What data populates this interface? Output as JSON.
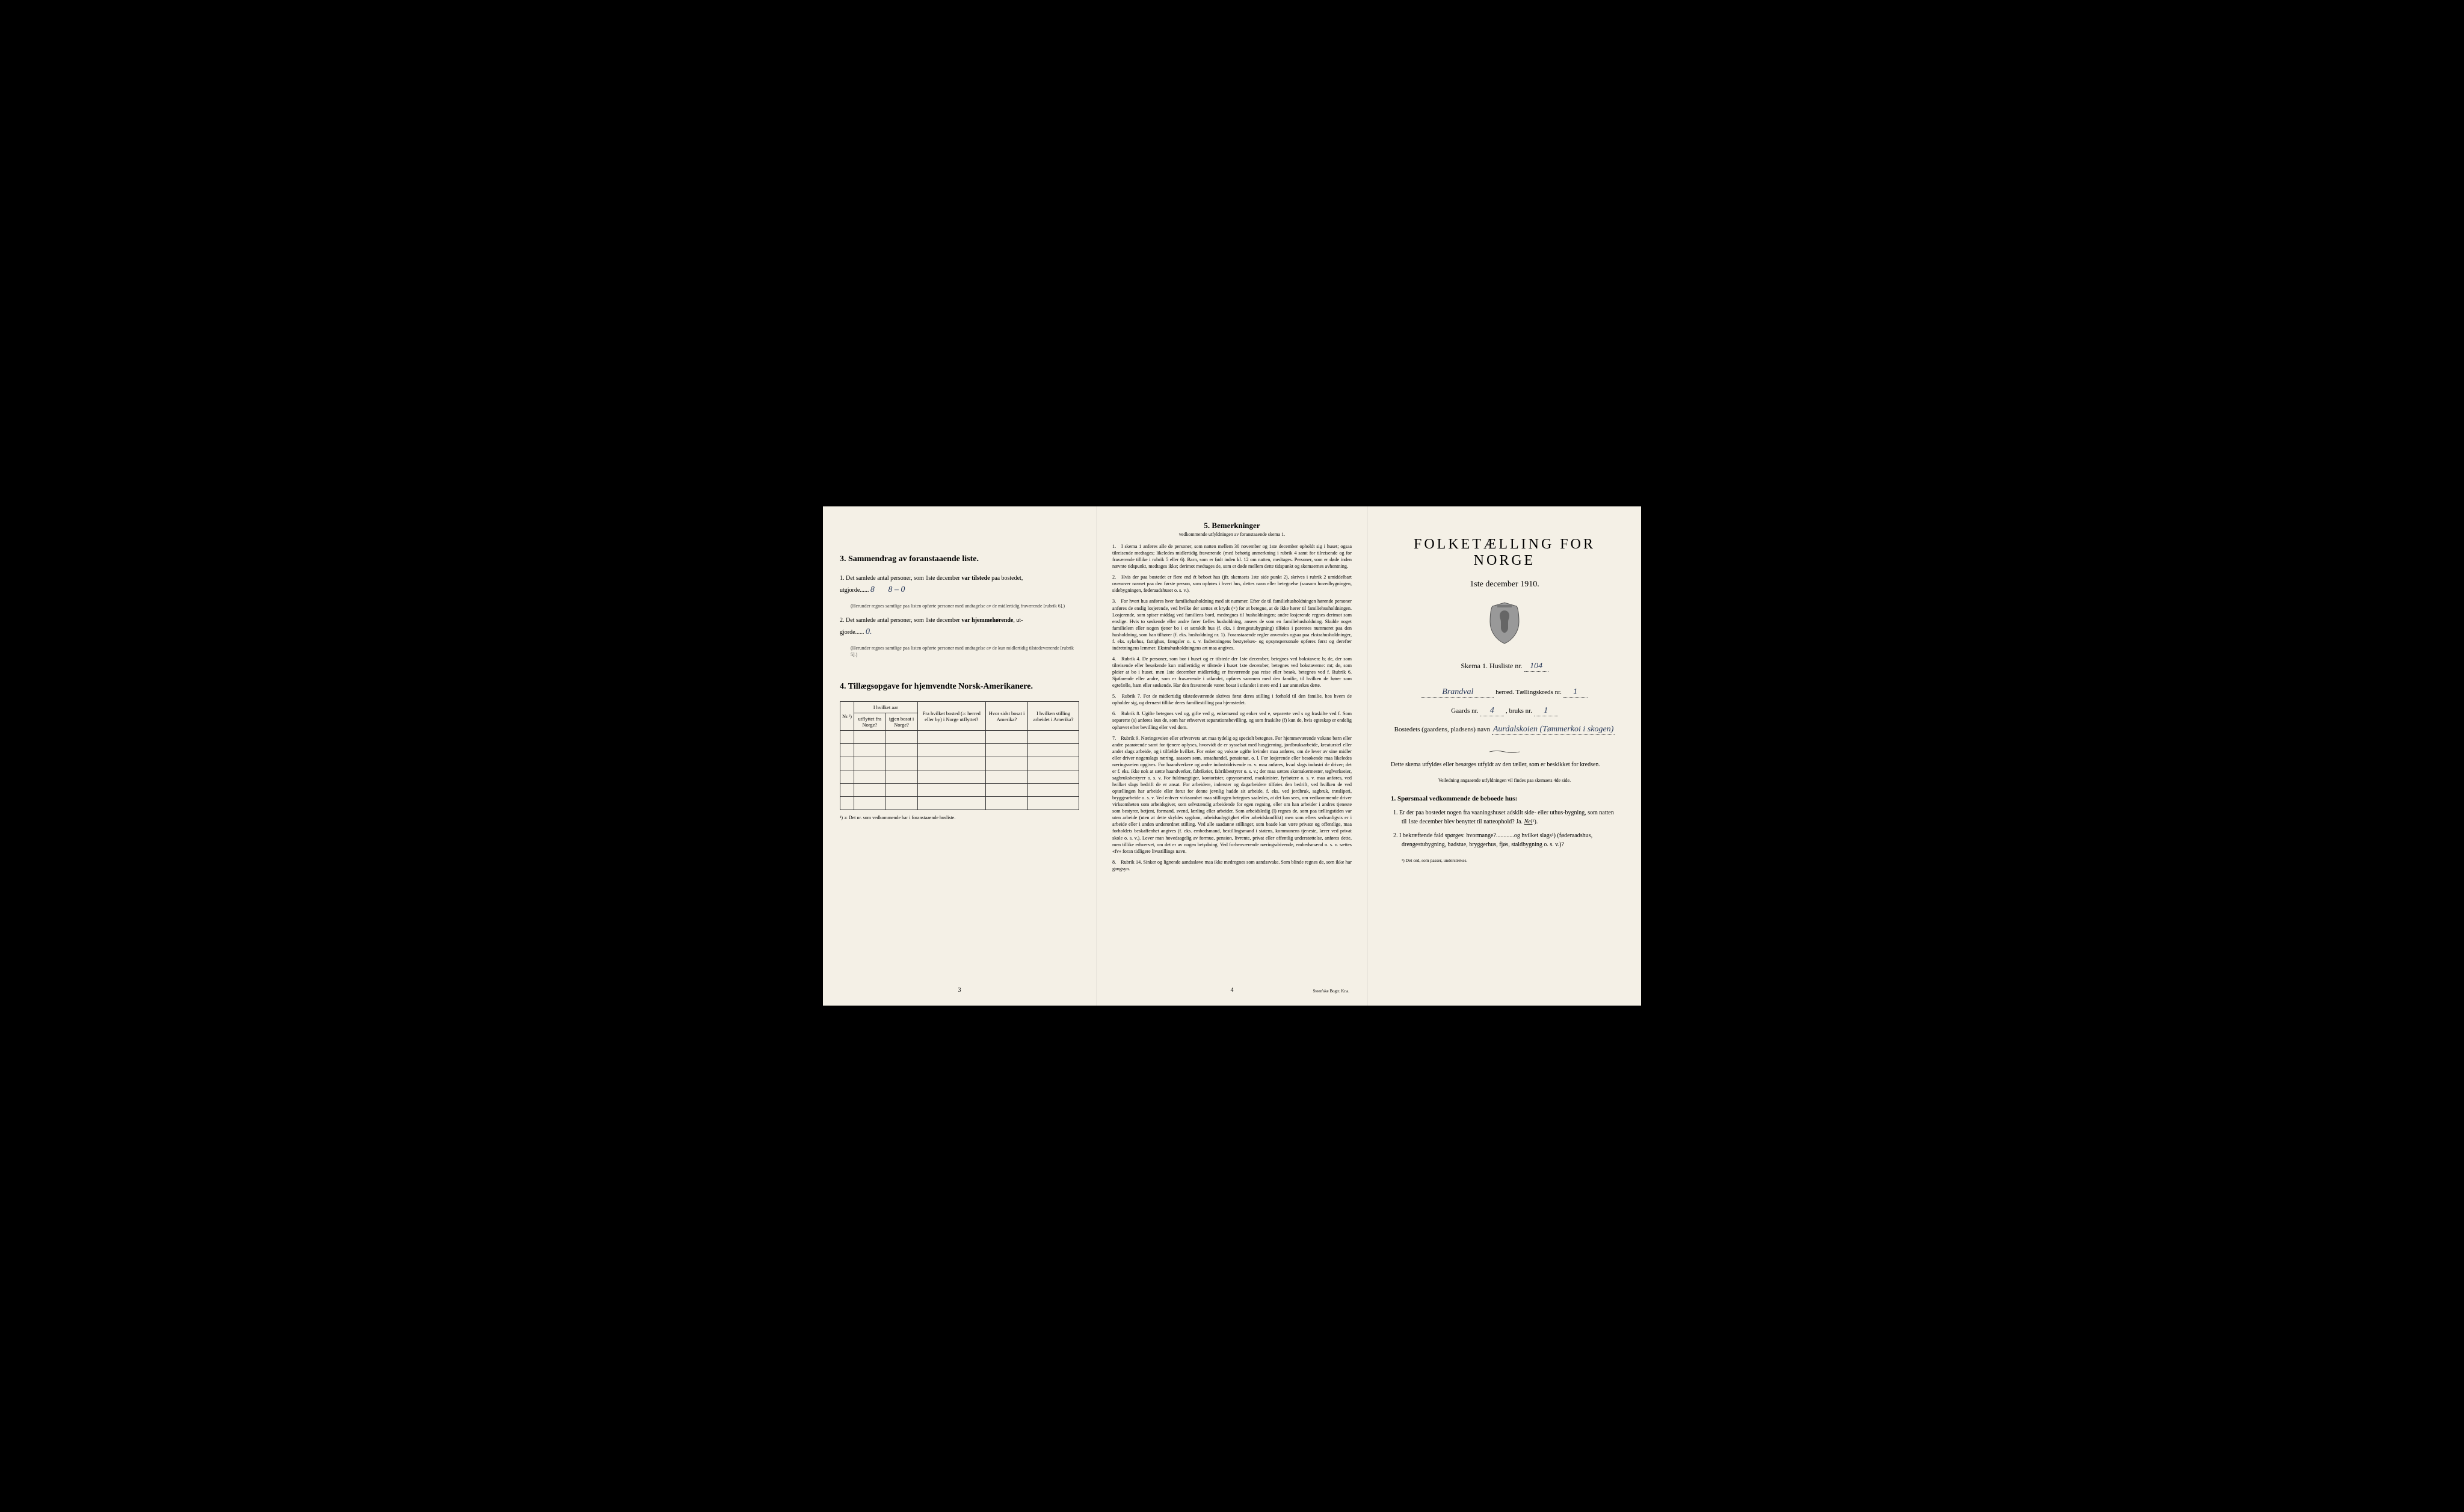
{
  "colors": {
    "paper": "#f4f0e6",
    "ink": "#1a1a1a",
    "handwriting": "#2a3a5a"
  },
  "page1": {
    "section3_title": "3.   Sammendrag av foranstaaende liste.",
    "q1_prefix": "1.  Det samlede antal personer, som 1ste december",
    "q1_bold": " var tilstede ",
    "q1_suffix": "paa bostedet,",
    "q1_line2": "utgjorde......",
    "q1_hand1": "8",
    "q1_hand2": "8 – 0",
    "q1_note": "(Herunder regnes samtlige paa listen opførte personer med undtagelse av de midlertidig fraværende [rubrik 6].)",
    "q2_prefix": "2.  Det samlede antal personer, som 1ste december",
    "q2_bold": " var hjemmehørende",
    "q2_suffix": ", ut-",
    "q2_line2": "gjorde......",
    "q2_hand": "0.",
    "q2_note": "(Herunder regnes samtlige paa listen opførte personer med undtagelse av de kun midlertidig tilstedeværende [rubrik 5].)",
    "section4_title": "4.  Tillægsopgave for hjemvendte Norsk-Amerikanere.",
    "table": {
      "col1": "Nr.¹)",
      "col2_top": "I hvilket aar",
      "col2a": "utflyttet fra Norge?",
      "col2b": "igjen bosat i Norge?",
      "col3": "Fra hvilket bosted (ɔ: herred eller by) i Norge utflyttet?",
      "col4": "Hvor sidst bosat i Amerika?",
      "col5": "I hvilken stilling arbeidet i Amerika?",
      "empty_rows": 6
    },
    "footnote": "¹) ɔ: Det nr. som vedkommende har i foranstaaende husliste.",
    "page_num": "3"
  },
  "page2": {
    "title": "5.   Bemerkninger",
    "subtitle": "vedkommende utfyldningen av foranstaaende skema 1.",
    "items": [
      "I skema 1 anføres alle de personer, som natten mellem 30 november og 1ste december opholdt sig i huset; ogsaa tilreisende medtages; likeledes midlertidig fraværende (med behørig anmerkning i rubrik 4 samt for tilreisende og for fraværende tillike i rubrik 5 eller 6). Barn, som er født inden kl. 12 om natten, medtages. Personer, som er døde inden nævnte tidspunkt, medtages ikke; derimot medtages de, som er døde mellem dette tidspunkt og skemaernes avhentning.",
      "Hvis der paa bostedet er flere end ét beboet hus (jfr. skemaets 1ste side punkt 2), skrives i rubrik 2 umiddelbart ovenover navnet paa den første person, som opføres i hvert hus, dettes navn eller betegnelse (saasom hovedbygningen, sidebygningen, føderaadshuset o. s. v.).",
      "For hvert hus anføres hver familiehusholdning med sit nummer. Efter de til familiehusholdningen hørende personer anføres de enslig losjerende, ved hvilke der sættes et kryds (×) for at betegne, at de ikke hører til familiehusholdningen. Losjerende, som spiser middag ved familiens bord, medregnes til husholdningen; andre losjerende regnes derimot som enslige. Hvis to søskende eller andre fører fælles husholdning, ansees de som en familiehusholdning. Skulde noget familielem eller nogen tjener bo i et særskilt hus (f. eks. i drengestubygning) tilføies i parentes nummeret paa den husholdning, som han tilhører (f. eks. husholdning nr. 1).    Foranstaaende regler anvendes ogsaa paa ekstrahusholdninger, f. eks. sykehus, fattighus, fængsler o. s. v. Indretningens bestyrelses- og opsynspersonale opføres først og derefter indretningens lemmer. Ekstrahusholdningens art maa angives.",
      "Rubrik 4. De personer, som bor i huset og er tilstede der 1ste december, betegnes ved bokstaven: b; de, der som tilreisende eller besøkende kun midlertidig er tilstede i huset 1ste december, betegnes ved bokstaverne: mt; de, som pleier at bo i huset, men 1ste december midlertidig er fraværende paa reise eller besøk, betegnes ved f.    Rubrik 6. Sjøfarende eller andre, som er fraværende i utlandet, opføres sammen med den familie, til hvilken de hører som egtefælle, barn eller søskende.    Har den fraværende været bosat i utlandet i mere end 1 aar anmerkes dette.",
      "Rubrik 7. For de midlertidig tilstedeværende skrives først deres stilling i forhold til den familie, hos hvem de opholder sig, og dernæst tillike deres familiestilling paa hjemstedet.",
      "Rubrik 8. Ugifte betegnes ved ug, gifte ved g, enkemænd og enker ved e, separerte ved s og fraskilte ved f. Som separerte (s) anføres kun de, som har erhvervet separationsbevilling, og som fraskilte (f) kun de, hvis egteskap er endelig ophævet efter bevilling eller ved dom.",
      "Rubrik 9. Næringsveien eller erhvervets art maa tydelig og specielt betegnes.    For hjemmeværende voksne børn eller andre paarørende samt for tjenere oplyses, hvorvidt de er sysselsat med husgjerning, jordbruksarbeide, kreaturstel eller andet slags arbeide, og i tilfælde hvilket. For enker og voksne ugifte kvinder maa anføres, om de lever av sine midler eller driver nogenslags næring, saasom søm, smaahandel, pensionat, o. l.    For losjerende eller besøkende maa likeledes næringsveien opgives.    For haandverkere og andre industridrivende m. v. maa anføres, hvad slags industri de driver; det er f. eks. ikke nok at sætte haandverker, fabrikeier, fabrikbestyrer o. s. v.; der maa sættes skomakermester, teglverkseier, sagbruksbestyrer o. s. v.    For fuldmægtiger, kontorister, opsynsmænd, maskinister, fyrbøtere o. s. v. maa anføres, ved hvilket slags bedrift de er ansat.    For arbeidere, inderster og dagarbeidere tilføies den bedrift, ved hvilken de ved optællingen har arbeide eller forut for denne jevnlig hadde sit arbeide, f. eks. ved jordbruk, sagbruk, træsliperi, bryggearbeide o. s. v.    Ved enhver virksomhet maa stillingen betegnes saaledes, at det kan sees, om vedkommende driver virksomheten som arbeidsgiver, som selvstændig arbeidende for egen regning, eller om han arbeider i andres tjeneste som bestyrer, betjent, formand, svend, lærling eller arbeider.    Som arbeidsledig (l) regnes de, som paa tællingstiden var uten arbeide (uten at dette skyldes sygdom, arbeidsudygtighet eller arbeidskonflikt) men som ellers sedvanligvis er i arbeide eller i anden underordnet stilling.    Ved alle saadanne stillinger, som baade kan være private og offentlige, maa forholdets beskaffenhet angives (f. eks. embedsmand, bestillingsmand i statens, kommunens tjeneste, lærer ved privat skole o. s. v.).    Lever man hovedsagelig av formue, pension, livrente, privat eller offentlig understøttelse, anføres dette, men tillike erhvervet, om det er av nogen betydning.    Ved forhenværende næringsdrivende, embedsmænd o. s. v. sættes «fv» foran tidligere livsstillings navn.",
      "Rubrik 14. Sinker og lignende aandssløve maa ikke medregnes som aandssvake. Som blinde regnes de, som ikke har gangsyn."
    ],
    "page_num": "4",
    "printer": "Steen'ske Bogtr.  Kr.a."
  },
  "page3": {
    "main_title": "FOLKETÆLLING FOR NORGE",
    "date": "1ste december 1910.",
    "skema": "Skema 1.   Husliste nr.",
    "husliste_nr": "104",
    "herred_hand": "Brandval",
    "herred_label": " herred.   Tællingskreds nr.",
    "kreds_nr": "1",
    "gaards_label": "Gaards nr.",
    "gaards_nr": "4",
    "bruks_label": ", bruks nr.",
    "bruks_nr": "1",
    "bosted_label": "Bostedets (gaardens, pladsens) navn",
    "bosted_hand": "Aurdalskoien (Tømmerkoi i skogen)",
    "instr": "Dette skema utfyldes eller besørges utfyldt av den tæller, som er beskikket for kredsen.",
    "instr_small": "Veiledning angaaende utfyldningen vil findes paa skemaets 4de side.",
    "q1_title": "1. Spørsmaal vedkommende de beboede hus:",
    "sub1": "1.  Er der paa bostedet nogen fra vaaningshuset adskilt side- eller uthus-bygning, som natten til 1ste december blev benyttet til natteophold?   Ja.   ",
    "sub1_nei": "Nei",
    "sub1_sup": "¹).",
    "sub2": "2.  I bekræftende fald spørges: hvormange?............og hvilket slags¹) (føderaadshus, drengestubygning, badstue, bryggerhus, fjøs, staldbygning o. s. v.)?",
    "footnote": "¹) Det ord, som passer, understrekes."
  }
}
